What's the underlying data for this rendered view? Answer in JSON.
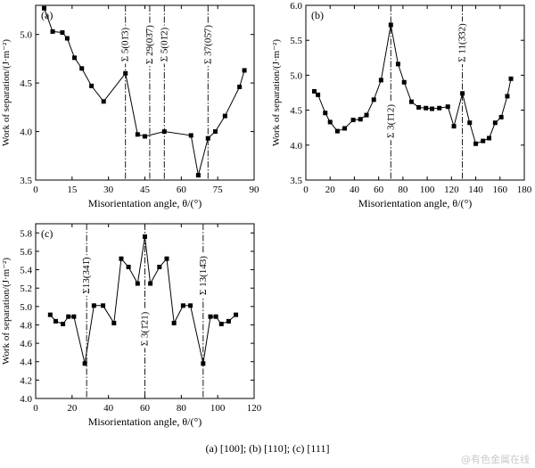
{
  "figure": {
    "caption": "(a) [100]; (b) [110]; (c) [111]",
    "watermark": "@有色金属在线"
  },
  "chart_data": [
    {
      "type": "line",
      "panel_label": "(a)",
      "xlabel": "Misorientation angle, θ/(°)",
      "ylabel": "Work of separation/(J·m⁻²)",
      "xlim": [
        0,
        90
      ],
      "ylim": [
        3.5,
        5.3
      ],
      "xticks": [
        0,
        15,
        30,
        45,
        60,
        75,
        90
      ],
      "yticks": [
        3.5,
        4.0,
        4.5,
        5.0
      ],
      "x": [
        3.5,
        7,
        11,
        13,
        16,
        19,
        23,
        28,
        37,
        42,
        45,
        53,
        64,
        67,
        71,
        74,
        78,
        84,
        86
      ],
      "y": [
        5.27,
        5.03,
        5.02,
        4.96,
        4.76,
        4.65,
        4.47,
        4.31,
        4.6,
        3.97,
        3.95,
        4.0,
        3.96,
        3.55,
        3.93,
        4.0,
        4.16,
        4.46,
        4.63
      ],
      "markers": "square",
      "grid": false,
      "annotations": [
        {
          "x": 37,
          "label": "Σ 5(01̄3)"
        },
        {
          "x": 47,
          "label": "Σ 29(03̄7)"
        },
        {
          "x": 53,
          "label": "Σ 5(01̄2)"
        },
        {
          "x": 71,
          "label": "Σ 37(05̄7)"
        }
      ]
    },
    {
      "type": "line",
      "panel_label": "(b)",
      "xlabel": "Misorientation angle, θ/(°)",
      "ylabel": "Work of separation/(J·m⁻²)",
      "xlim": [
        0,
        180
      ],
      "ylim": [
        3.5,
        6.0
      ],
      "xticks": [
        0,
        20,
        40,
        60,
        80,
        100,
        120,
        140,
        160,
        180
      ],
      "yticks": [
        3.5,
        4.0,
        4.5,
        5.0,
        5.5,
        6.0
      ],
      "x": [
        7,
        10,
        16,
        20,
        26,
        32,
        39,
        45,
        50,
        56,
        62,
        70,
        76,
        81,
        87,
        93,
        99,
        104,
        110,
        117,
        122,
        129,
        135,
        140,
        146,
        151,
        156,
        161,
        166,
        169
      ],
      "y": [
        4.77,
        4.72,
        4.46,
        4.33,
        4.2,
        4.24,
        4.36,
        4.37,
        4.43,
        4.65,
        4.93,
        5.72,
        5.16,
        4.9,
        4.62,
        4.54,
        4.53,
        4.52,
        4.53,
        4.55,
        4.27,
        4.74,
        4.32,
        4.02,
        4.06,
        4.1,
        4.32,
        4.4,
        4.7,
        4.95
      ],
      "markers": "square",
      "grid": false,
      "annotations": [
        {
          "x": 70,
          "label": "Σ 3(1̄12)"
        },
        {
          "x": 129,
          "label": "Σ 11(3̄32)"
        }
      ]
    },
    {
      "type": "line",
      "panel_label": "(c)",
      "xlabel": "Misorientation angle, θ/(°)",
      "ylabel": "Work of separation/(J·m⁻²)",
      "xlim": [
        0,
        120
      ],
      "ylim": [
        4.0,
        5.9
      ],
      "xticks": [
        0,
        20,
        40,
        60,
        80,
        100,
        120
      ],
      "yticks": [
        4.0,
        4.2,
        4.4,
        4.6,
        4.8,
        5.0,
        5.2,
        5.4,
        5.6,
        5.8
      ],
      "x": [
        8,
        11,
        15,
        18,
        21,
        27,
        32,
        37,
        43,
        47,
        51,
        56,
        60,
        63,
        68,
        72,
        76,
        81,
        85,
        92,
        96,
        99,
        102,
        106,
        110
      ],
      "y": [
        4.91,
        4.84,
        4.81,
        4.89,
        4.89,
        4.38,
        5.01,
        5.01,
        4.82,
        5.52,
        5.43,
        5.25,
        5.76,
        5.25,
        5.43,
        5.52,
        4.82,
        5.01,
        5.01,
        4.38,
        4.89,
        4.89,
        4.81,
        4.84,
        4.91
      ],
      "markers": "square",
      "grid": false,
      "annotations": [
        {
          "x": 28,
          "label": "Σ13(341̄)"
        },
        {
          "x": 60,
          "label": "Σ 3(1̄21)"
        },
        {
          "x": 92,
          "label": "Σ 13(14̄3)"
        }
      ]
    }
  ]
}
